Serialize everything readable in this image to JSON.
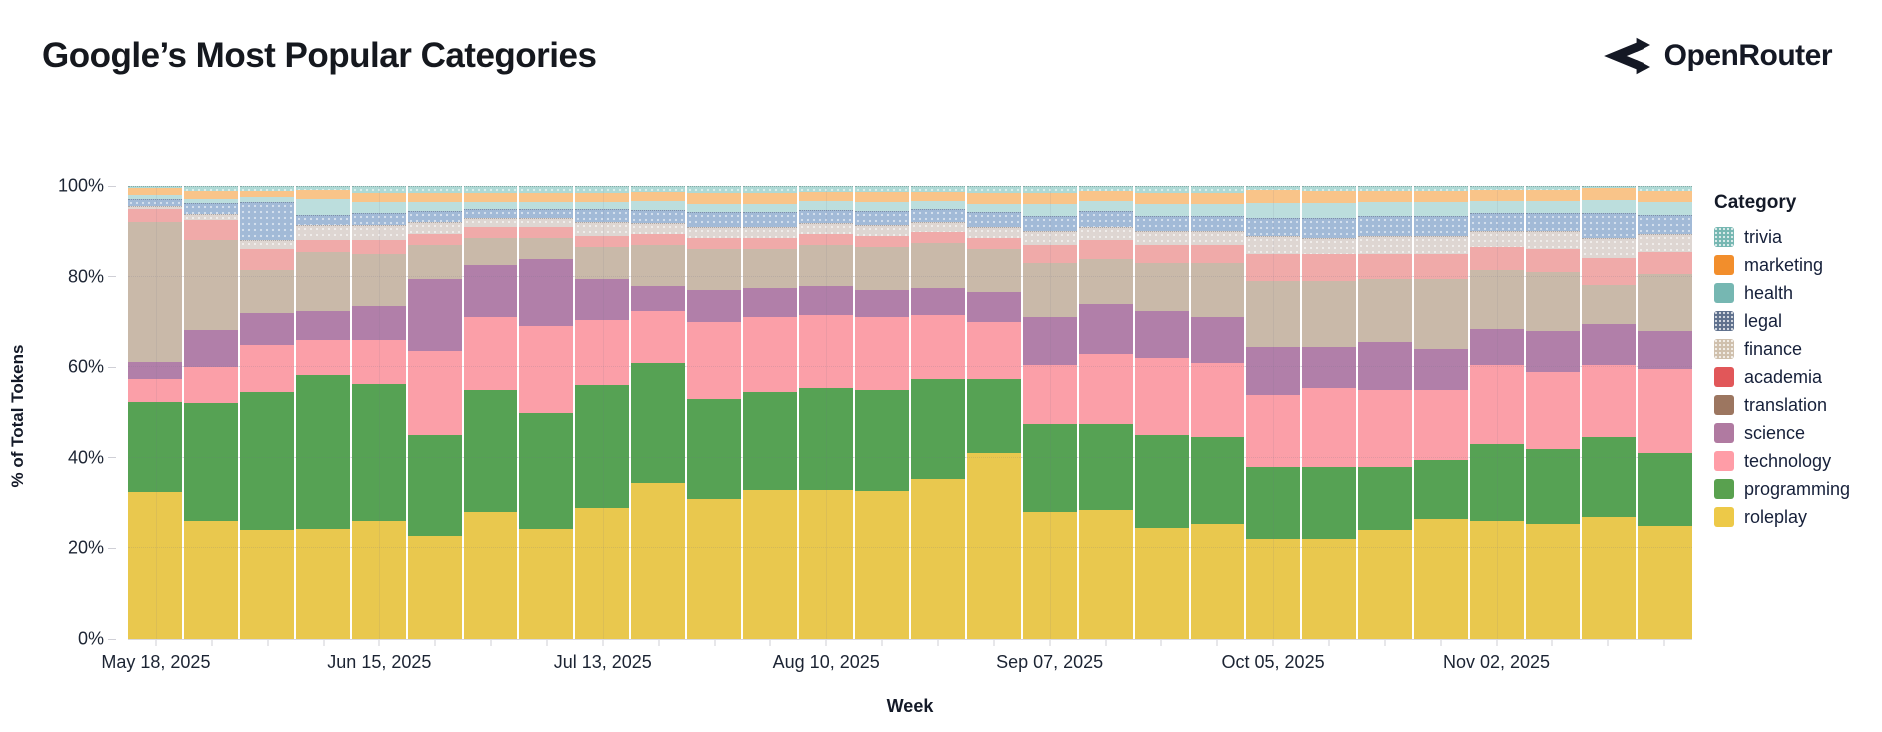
{
  "header": {
    "title": "Google’s Most Popular Categories",
    "brand": "OpenRouter"
  },
  "legend": {
    "title": "Category",
    "items": [
      "trivia",
      "marketing",
      "health",
      "legal",
      "finance",
      "academia",
      "translation",
      "science",
      "technology",
      "programming",
      "roleplay"
    ]
  },
  "chart_data": {
    "type": "bar",
    "subtype": "stacked-100-percent",
    "title": "Google’s Most Popular Categories",
    "xlabel": "Week",
    "ylabel": "% of Total Tokens",
    "ylim": [
      0,
      100
    ],
    "grid": true,
    "legend_position": "right",
    "bar_count": 28,
    "yticks": [
      {
        "pct": 0,
        "label": "0%"
      },
      {
        "pct": 20,
        "label": "20%"
      },
      {
        "pct": 40,
        "label": "40%"
      },
      {
        "pct": 60,
        "label": "60%"
      },
      {
        "pct": 80,
        "label": "80%"
      },
      {
        "pct": 100,
        "label": "100%"
      }
    ],
    "x_tick_labels": [
      {
        "index": 0,
        "label": "May 18, 2025"
      },
      {
        "index": 4,
        "label": "Jun 15, 2025"
      },
      {
        "index": 8,
        "label": "Jul 13, 2025"
      },
      {
        "index": 12,
        "label": "Aug 10, 2025"
      },
      {
        "index": 16,
        "label": "Sep 07, 2025"
      },
      {
        "index": 20,
        "label": "Oct 05, 2025"
      },
      {
        "index": 24,
        "label": "Nov 02, 2025"
      }
    ],
    "stack_order_bottom_to_top": [
      "roleplay",
      "programming",
      "technology",
      "science",
      "translation",
      "academia",
      "finance",
      "legal",
      "health",
      "marketing",
      "trivia"
    ],
    "series": [
      {
        "name": "roleplay",
        "legend_color": "#edc948",
        "bar_color": "#e9c84e",
        "patterned": false,
        "values": [
          32.5,
          26,
          24,
          24.3,
          26,
          22.8,
          28,
          24.3,
          29,
          34.5,
          31,
          33,
          33,
          32.6,
          35.4,
          41,
          28,
          28.5,
          24.5,
          25.5,
          22,
          22,
          24,
          26.5,
          26,
          25.5,
          27,
          25
        ]
      },
      {
        "name": "programming",
        "legend_color": "#59a14f",
        "bar_color": "#56a254",
        "patterned": false,
        "values": [
          19.8,
          26,
          30.5,
          34,
          30.4,
          22.2,
          27,
          25.7,
          27,
          26.5,
          22,
          21.5,
          22.5,
          22.4,
          22.1,
          16.5,
          19.5,
          19,
          20.5,
          19,
          16,
          16,
          14,
          13,
          17,
          16.5,
          17.5,
          16
        ]
      },
      {
        "name": "technology",
        "legend_color": "#ff9da7",
        "bar_color": "#fb9fa8",
        "patterned": false,
        "values": [
          5.1,
          8,
          10.5,
          7.7,
          9.6,
          18.5,
          16,
          19,
          14.5,
          11.5,
          17,
          16.5,
          16,
          16,
          14,
          12.5,
          13,
          15.5,
          17,
          16.5,
          15.8,
          17.5,
          17,
          15.5,
          17.5,
          17,
          16,
          18.5
        ]
      },
      {
        "name": "science",
        "legend_color": "#b07aa1",
        "bar_color": "#b17fa9",
        "patterned": false,
        "values": [
          3.8,
          8.3,
          7,
          6.5,
          7.5,
          16,
          11.5,
          15,
          9,
          5.5,
          7,
          6.5,
          6.5,
          6,
          6,
          6.5,
          10.5,
          11,
          10.5,
          10,
          10.7,
          9,
          10.5,
          9,
          8,
          9,
          9,
          8.5
        ]
      },
      {
        "name": "translation",
        "legend_color": "#9c7660",
        "bar_color": "#c9b9a9",
        "patterned": false,
        "values": [
          30.8,
          19.7,
          9.5,
          13,
          11.5,
          7.5,
          6,
          4.5,
          7,
          9,
          9,
          8.5,
          9,
          9.5,
          10,
          9.5,
          12,
          10,
          10.5,
          12,
          14.6,
          14.5,
          14,
          15.5,
          13,
          13,
          8.7,
          12.5
        ]
      },
      {
        "name": "academia",
        "legend_color": "#e15759",
        "bar_color": "#f0aaa9",
        "patterned": false,
        "values": [
          3.0,
          4.4,
          4.5,
          2.5,
          3.0,
          2.5,
          2.5,
          2.5,
          2.5,
          2.4,
          2.5,
          2.5,
          2.4,
          2.5,
          2.3,
          2.5,
          4.0,
          4.0,
          4.0,
          4.0,
          5.8,
          6.0,
          5.5,
          5.5,
          5.0,
          5.0,
          5.9,
          5.0
        ]
      },
      {
        "name": "finance",
        "legend_color": "#cfc0ad",
        "bar_color": "#ded6d2",
        "patterned": true,
        "values": [
          0.5,
          1.5,
          2,
          3.5,
          3.5,
          2.5,
          2.0,
          2.0,
          3.0,
          2.4,
          2.5,
          2.5,
          2.4,
          2.5,
          2.3,
          2.5,
          3.0,
          3.0,
          3.0,
          3.0,
          4.0,
          3.5,
          4.0,
          4.0,
          3.5,
          4.0,
          4.4,
          4.0
        ]
      },
      {
        "name": "legal",
        "legend_color": "#5f718d",
        "bar_color": "#a2bad7",
        "patterned": true,
        "values": [
          1.6,
          2.3,
          8.5,
          2.2,
          2.5,
          2.5,
          2.0,
          2.0,
          3.0,
          3.0,
          3.2,
          3.2,
          3.0,
          3.1,
          2.8,
          3.2,
          3.5,
          3.5,
          3.5,
          3.5,
          4.1,
          4.5,
          4.5,
          4.5,
          4.0,
          4.0,
          5.5,
          4.2
        ]
      },
      {
        "name": "health",
        "legend_color": "#76b7b2",
        "bar_color": "#bcdedd",
        "patterned": false,
        "values": [
          1.0,
          1.0,
          1.0,
          3.5,
          2.5,
          2.0,
          1.5,
          1.5,
          1.5,
          1.8,
          1.9,
          1.9,
          1.8,
          1.8,
          1.7,
          1.9,
          2.5,
          2.2,
          2.5,
          2.5,
          3.3,
          3.2,
          3.0,
          3.0,
          2.7,
          2.7,
          3.0,
          2.8
        ]
      },
      {
        "name": "marketing",
        "legend_color": "#f28e2c",
        "bar_color": "#f9c489",
        "patterned": false,
        "values": [
          1.4,
          1.8,
          1.5,
          2.0,
          2.0,
          2.0,
          2.0,
          2.0,
          2.0,
          2.1,
          2.3,
          2.3,
          2.1,
          2.2,
          2.0,
          2.3,
          2.5,
          2.3,
          2.5,
          2.5,
          2.8,
          2.8,
          2.5,
          2.5,
          2.5,
          2.5,
          2.5,
          2.5
        ]
      },
      {
        "name": "trivia",
        "legend_color": "#76b7b2",
        "bar_color": "#aed9d5",
        "patterned": true,
        "values": [
          0.5,
          1.0,
          1.0,
          0.8,
          1.5,
          1.5,
          1.5,
          1.5,
          1.5,
          1.3,
          1.6,
          1.6,
          1.3,
          1.4,
          1.4,
          1.6,
          1.5,
          1.0,
          1.5,
          1.5,
          0.9,
          1.0,
          1.0,
          1.0,
          0.8,
          0.8,
          0.5,
          1.0
        ]
      }
    ]
  }
}
